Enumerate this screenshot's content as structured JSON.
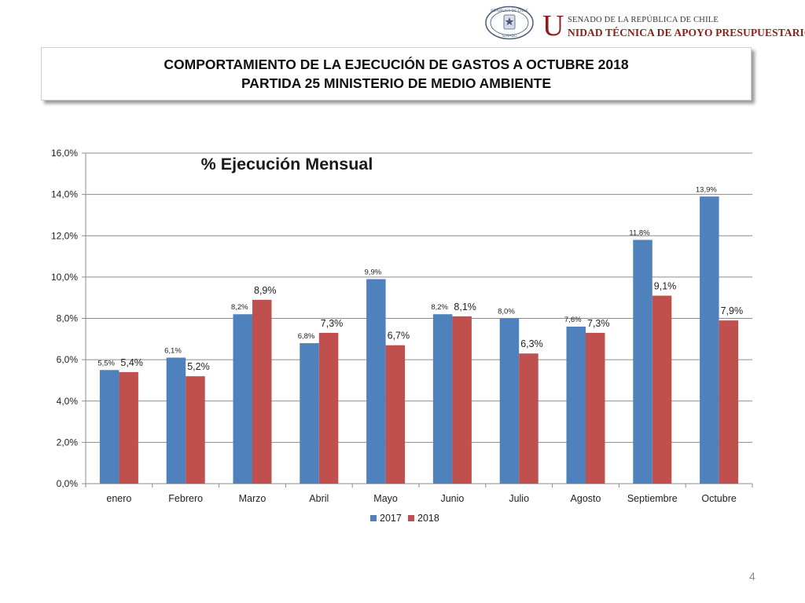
{
  "header": {
    "logo_top": "SENADO DE LA REPÚBLICA DE CHILE",
    "logo_initial": "U",
    "logo_bottom": "NIDAD TÉCNICA DE APOYO PRESUPUESTARIO",
    "seal_text_top": "REPÚBLICA DE CHILE",
    "seal_text_bottom": "SENADO"
  },
  "title": {
    "line1": "COMPORTAMIENTO DE LA EJECUCIÓN DE GASTOS A OCTUBRE 2018",
    "line2": "PARTIDA 25 MINISTERIO DE MEDIO AMBIENTE"
  },
  "page_number": "4",
  "chart_data": {
    "type": "bar",
    "title": "% Ejecución Mensual",
    "categories": [
      "enero",
      "Febrero",
      "Marzo",
      "Abril",
      "Mayo",
      "Junio",
      "Julio",
      "Agosto",
      "Septiembre",
      "Octubre"
    ],
    "series": [
      {
        "name": "2017",
        "color": "#4f81bd",
        "values": [
          5.5,
          6.1,
          8.2,
          6.8,
          9.9,
          8.2,
          8.0,
          7.6,
          11.8,
          13.9
        ],
        "labels": [
          "5,5%",
          "6,1%",
          "8,2%",
          "6,8%",
          "9,9%",
          "8,2%",
          "8,0%",
          "7,6%",
          "11,8%",
          "13,9%"
        ]
      },
      {
        "name": "2018",
        "color": "#c0504d",
        "values": [
          5.4,
          5.2,
          8.9,
          7.3,
          6.7,
          8.1,
          6.3,
          7.3,
          9.1,
          7.9
        ],
        "labels": [
          "5,4%",
          "5,2%",
          "8,9%",
          "7,3%",
          "6,7%",
          "8,1%",
          "6,3%",
          "7,3%",
          "9,1%",
          "7,9%"
        ]
      }
    ],
    "ylim": [
      0,
      16
    ],
    "yticks": [
      "0,0%",
      "2,0%",
      "4,0%",
      "6,0%",
      "8,0%",
      "10,0%",
      "12,0%",
      "14,0%",
      "16,0%"
    ],
    "grid": true,
    "legend_position": "bottom"
  }
}
